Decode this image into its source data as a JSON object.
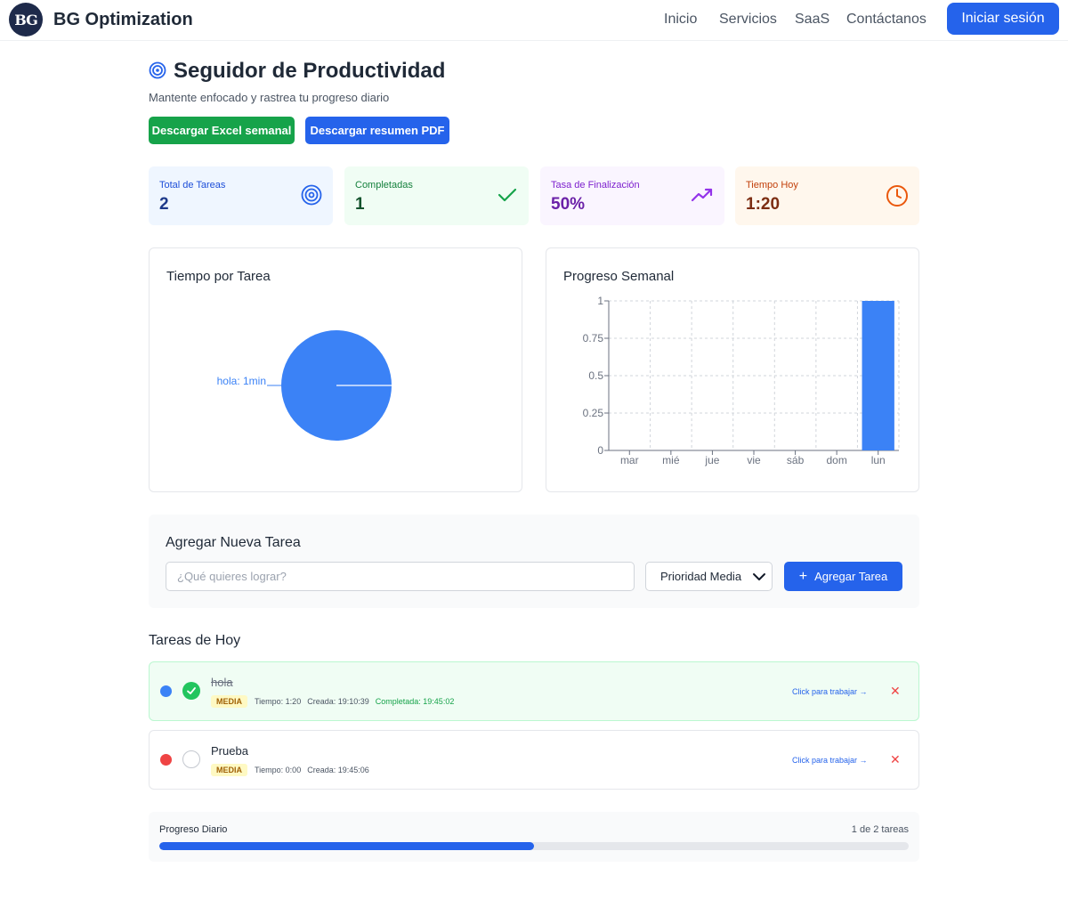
{
  "nav": {
    "logo_text": "BG",
    "brand": "BG Optimization",
    "links": [
      "Inicio",
      "Servicios",
      "SaaS",
      "Contáctanos"
    ],
    "login_label": "Iniciar sesión"
  },
  "header": {
    "title": "Seguidor de Productividad",
    "subtitle": "Mantente enfocado y rastrea tu progreso diario",
    "excel_label": "Descargar Excel semanal",
    "pdf_label": "Descargar resumen PDF"
  },
  "stats": [
    {
      "label": "Total de Tareas",
      "value": "2",
      "icon": "target-icon",
      "bg": "#eff6ff",
      "label_color": "#1d4ed8",
      "value_color": "#1e3a8a"
    },
    {
      "label": "Completadas",
      "value": "1",
      "icon": "check-icon",
      "bg": "#f0fdf4",
      "label_color": "#15803d",
      "value_color": "#14532d"
    },
    {
      "label": "Tasa de Finalización",
      "value": "50%",
      "icon": "trending-up-icon",
      "bg": "#faf5ff",
      "label_color": "#7e22ce",
      "value_color": "#6b21a8"
    },
    {
      "label": "Tiempo Hoy",
      "value": "1:20",
      "icon": "clock-icon",
      "bg": "#fff7ed",
      "label_color": "#c2410c",
      "value_color": "#7c2d12"
    }
  ],
  "pie_card": {
    "title": "Tiempo por Tarea"
  },
  "bar_card": {
    "title": "Progreso Semanal"
  },
  "chart_data": [
    {
      "type": "pie",
      "title": "Tiempo por Tarea",
      "slices": [
        {
          "label": "hola: 1min",
          "value": 1
        }
      ],
      "color": "#3b82f6"
    },
    {
      "type": "bar",
      "title": "Progreso Semanal",
      "categories": [
        "mar",
        "mié",
        "jue",
        "vie",
        "sáb",
        "dom",
        "lun"
      ],
      "values": [
        0,
        0,
        0,
        0,
        0,
        0,
        1
      ],
      "yticks": [
        "0",
        "0.25",
        "0.5",
        "0.75",
        "1"
      ],
      "ylim": [
        0,
        1
      ],
      "grid": true,
      "color": "#3b82f6"
    }
  ],
  "add_task": {
    "title": "Agregar Nueva Tarea",
    "input_placeholder": "¿Qué quieres lograr?",
    "input_value": "",
    "priority_selected": "Prioridad Media",
    "add_label": "Agregar Tarea"
  },
  "tasks_section": {
    "title": "Tareas de Hoy"
  },
  "tasks": [
    {
      "name": "hola",
      "dot_color": "#3b82f6",
      "completed": true,
      "priority": "MEDIA",
      "time": "Tiempo: 1:20",
      "created": "Creada: 19:10:39",
      "completed_at": "Completada: 19:45:02",
      "work_label": "Click para trabajar →"
    },
    {
      "name": "Prueba",
      "dot_color": "#ef4444",
      "completed": false,
      "priority": "MEDIA",
      "time": "Tiempo: 0:00",
      "created": "Creada: 19:45:06",
      "work_label": "Click para trabajar →"
    }
  ],
  "progress": {
    "label": "Progreso Diario",
    "count": "1 de 2 tareas",
    "value": 0.5
  }
}
